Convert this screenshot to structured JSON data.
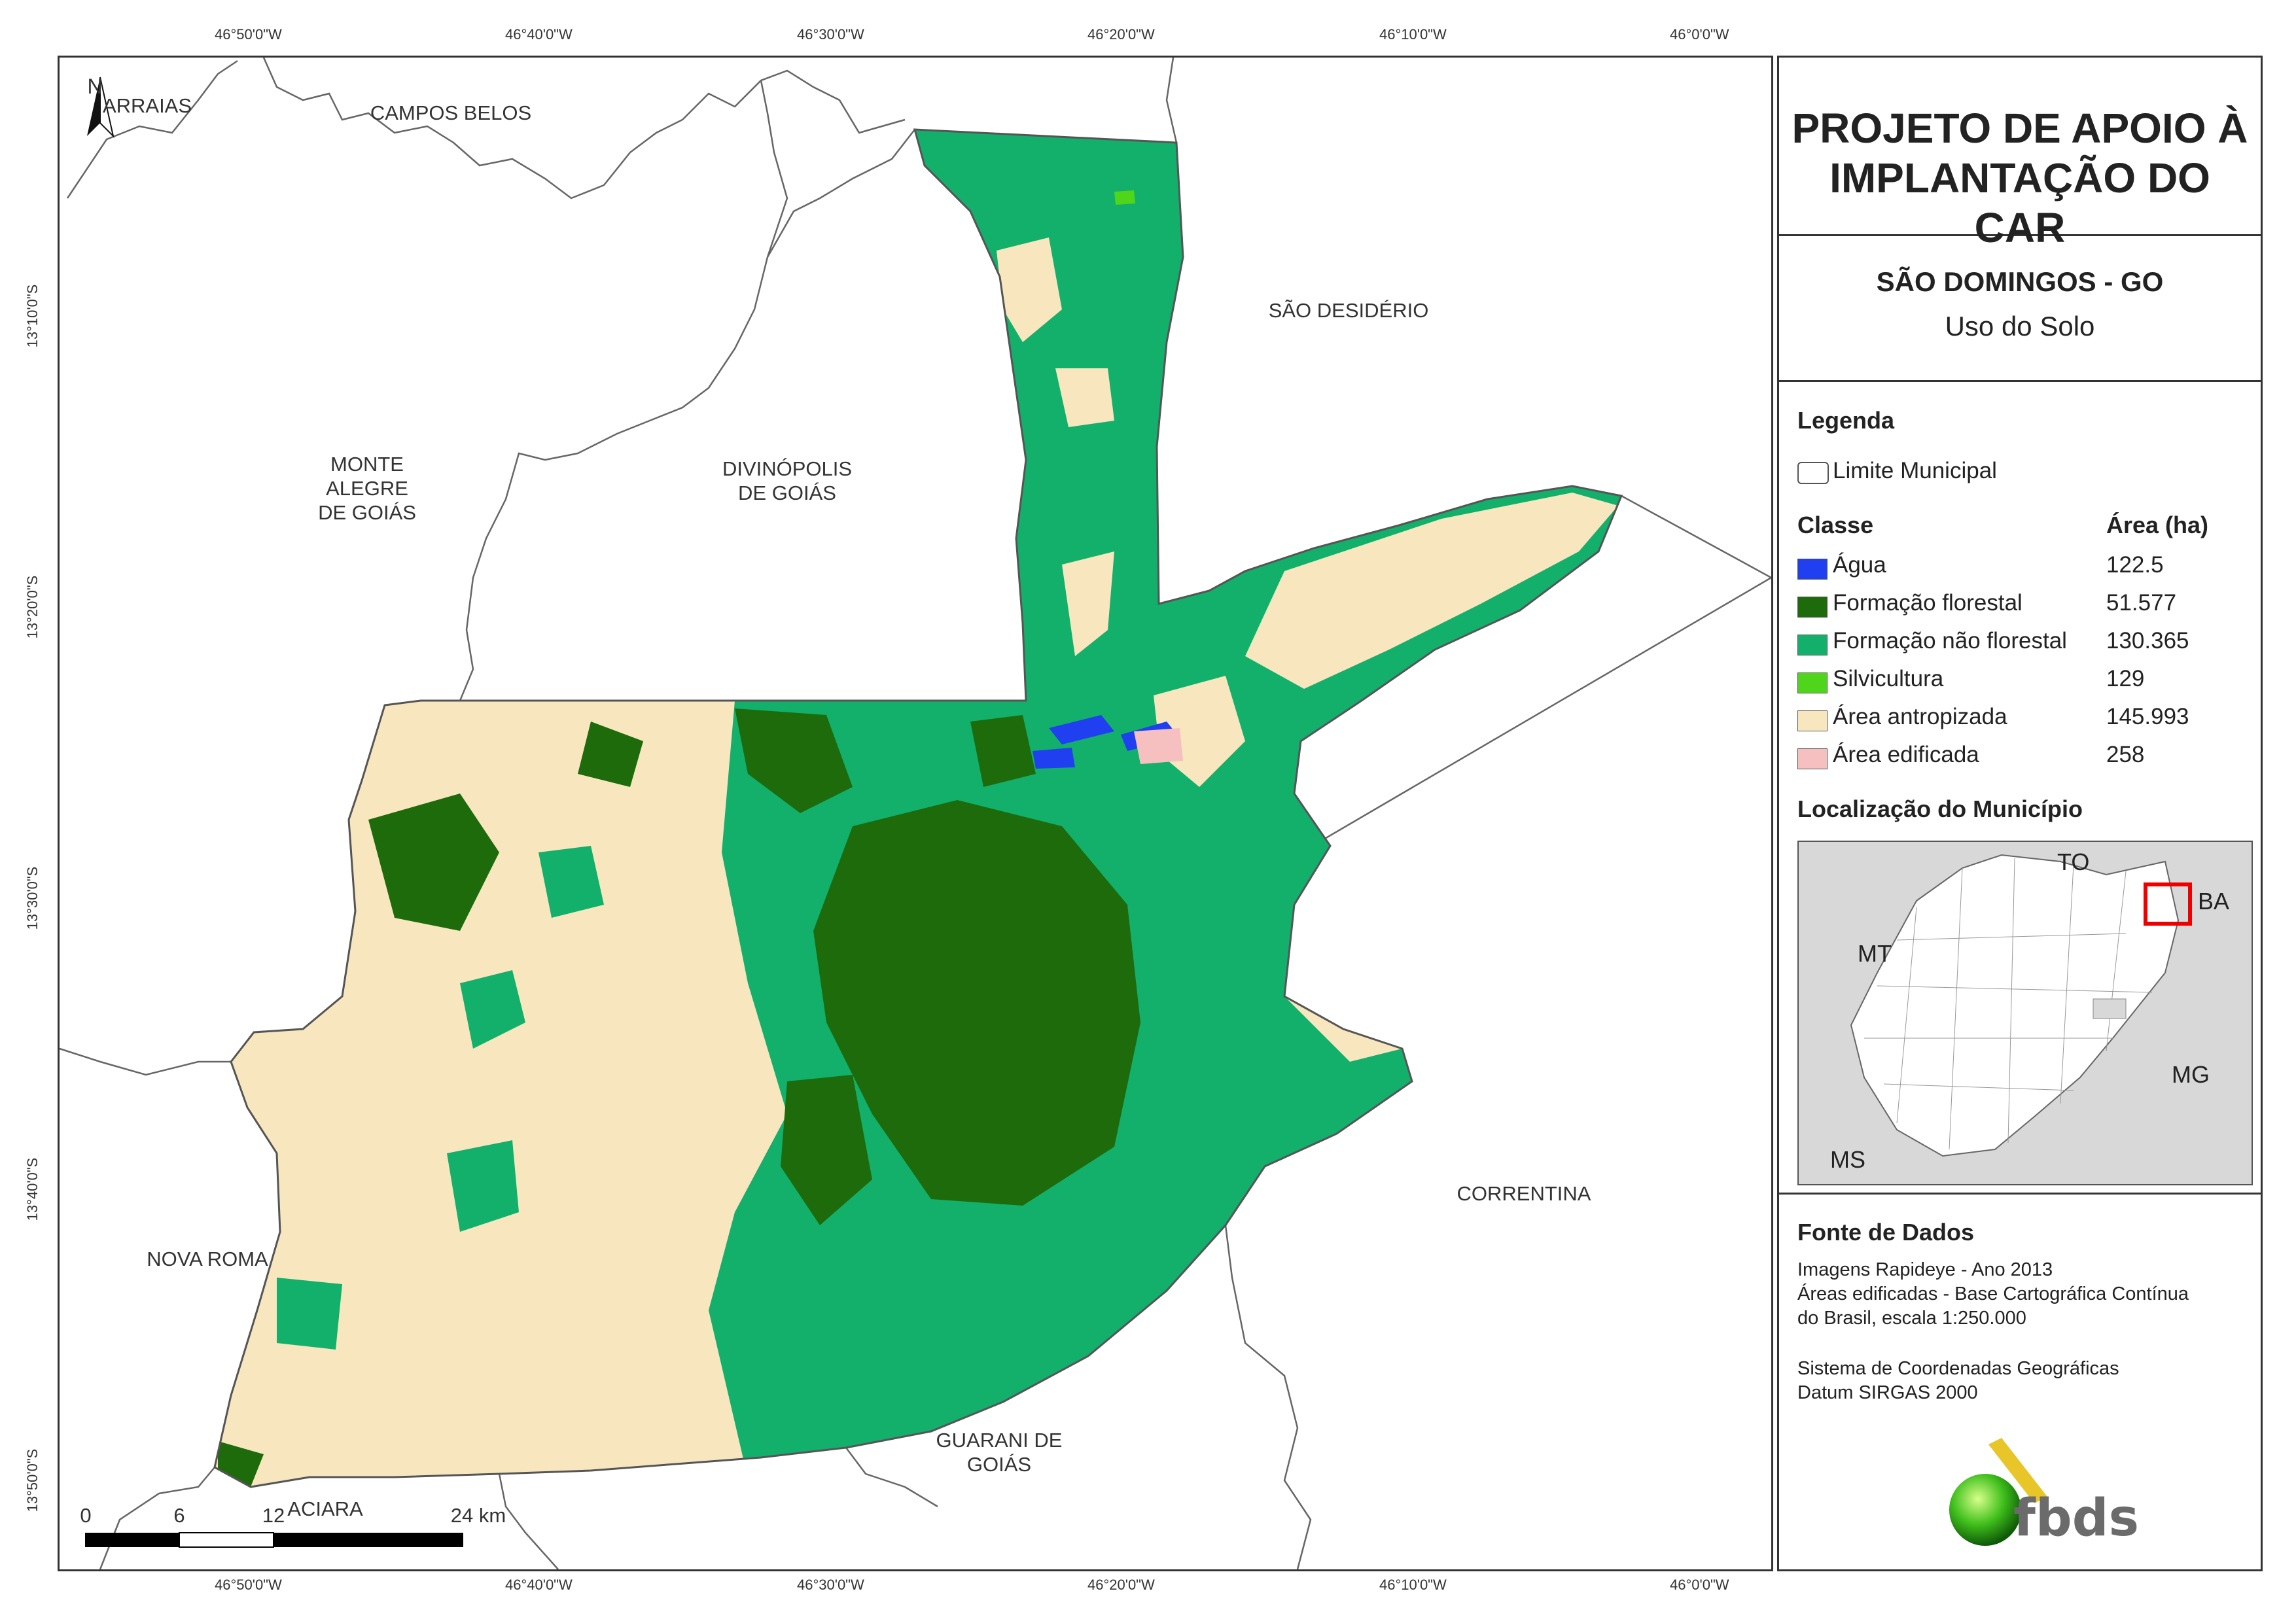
{
  "coordinates": {
    "top": [
      "46°50'0\"W",
      "46°40'0\"W",
      "46°30'0\"W",
      "46°20'0\"W",
      "46°10'0\"W",
      "46°0'0\"W"
    ],
    "bottom": [
      "46°50'0\"W",
      "46°40'0\"W",
      "46°30'0\"W",
      "46°20'0\"W",
      "46°10'0\"W",
      "46°0'0\"W"
    ],
    "left": [
      "13°10'0\"S",
      "13°20'0\"S",
      "13°30'0\"S",
      "13°40'0\"S",
      "13°50'0\"S"
    ]
  },
  "map": {
    "north_label": "N",
    "places": {
      "arraias": "ARRAIAS",
      "campos_belos": "CAMPOS BELOS",
      "sao_desiderio": "SÃO DESIDÉRIO",
      "monte_alegre": [
        "MONTE",
        "ALEGRE",
        "DE GOIÁS"
      ],
      "divinopolis": [
        "DIVINÓPOLIS",
        "DE GOIÁS"
      ],
      "correntina": "CORRENTINA",
      "nova_roma": "NOVA ROMA",
      "guarani": [
        "GUARANI DE",
        "GOIÁS"
      ],
      "aciara": "ACIARA"
    },
    "scale_bar": {
      "labels": [
        "0",
        "6",
        "12",
        "24 km"
      ]
    },
    "colors": {
      "agua": "#1f3ff0",
      "formacao_florestal": "#1d6b0b",
      "formacao_nao_florestal": "#12b06b",
      "silvicultura": "#4fd61a",
      "area_antropizada": "#f8e6bf",
      "area_edificada": "#f6c0c0",
      "boundary": "#666666"
    }
  },
  "panel": {
    "title": [
      "PROJETO DE APOIO À",
      "IMPLANTAÇÃO DO CAR"
    ],
    "municipio": "SÃO DOMINGOS - GO",
    "tema": "Uso do Solo",
    "legenda_heading": "Legenda",
    "limite_label": "Limite Municipal",
    "classe_heading": "Classe",
    "area_heading": "Área (ha)",
    "classes": [
      {
        "name": "Água",
        "area": "122.5",
        "color": "#1f3ff0"
      },
      {
        "name": "Formação florestal",
        "area": "51.577",
        "color": "#1d6b0b"
      },
      {
        "name": "Formação não florestal",
        "area": "130.365",
        "color": "#12b06b"
      },
      {
        "name": "Silvicultura",
        "area": "129",
        "color": "#4fd61a"
      },
      {
        "name": "Área antropizada",
        "area": "145.993",
        "color": "#f8e6bf"
      },
      {
        "name": "Área edificada",
        "area": "258",
        "color": "#f6c0c0"
      }
    ],
    "localizacao_heading": "Localização do Município",
    "loc_labels": {
      "to": "TO",
      "ba": "BA",
      "mt": "MT",
      "mg": "MG",
      "ms": "MS"
    },
    "fonte_heading": "Fonte de Dados",
    "fonte_lines": [
      "Imagens Rapideye - Ano 2013",
      "Áreas edificadas - Base Cartográfica Contínua",
      "do Brasil, escala 1:250.000"
    ],
    "sistema_lines": [
      "Sistema de Coordenadas Geográficas",
      "Datum SIRGAS 2000"
    ],
    "logo_text": "fbds"
  }
}
